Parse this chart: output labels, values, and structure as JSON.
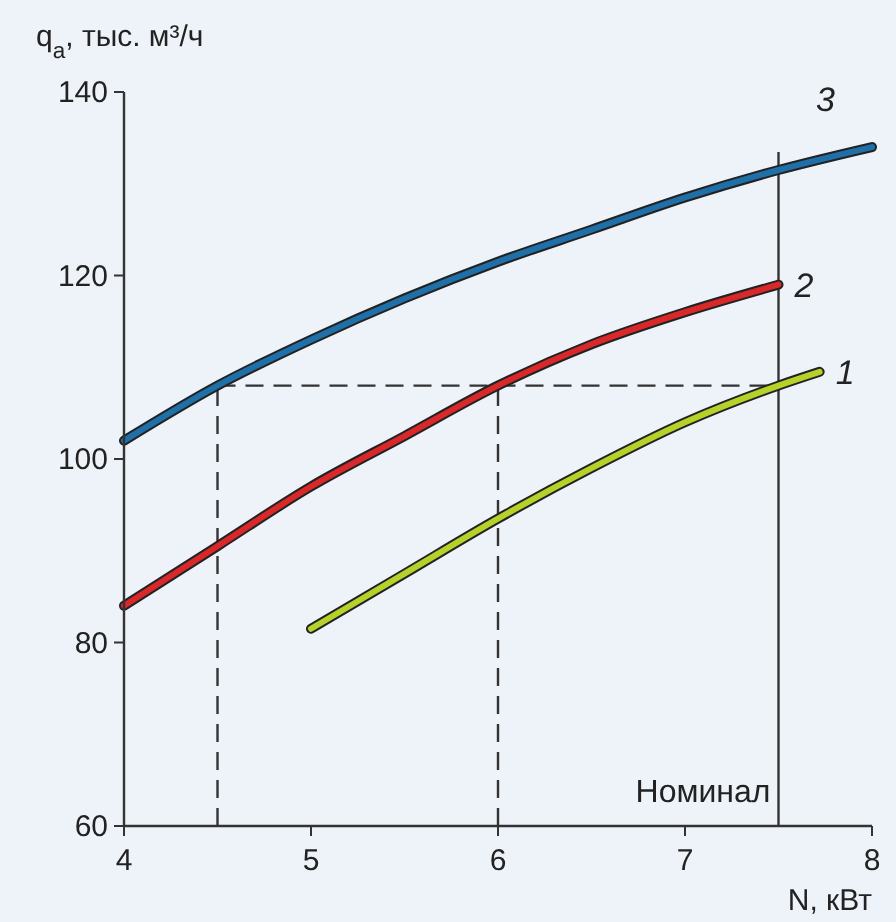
{
  "chart_data": {
    "type": "line",
    "xlabel": "N, кВт",
    "ylabel": "q$_{a}$, тыс. м³/ч",
    "x": [
      4,
      4.5,
      5,
      5.5,
      6,
      6.5,
      7,
      7.5,
      8
    ],
    "series": [
      {
        "name": "1",
        "color": "#b5d12a",
        "x": [
          5,
          5.5,
          6,
          6.5,
          7,
          7.5,
          7.72
        ],
        "values": [
          81.5,
          87.5,
          93.5,
          99,
          104,
          108,
          109.5
        ]
      },
      {
        "name": "2",
        "color": "#d8282a",
        "x": [
          4,
          4.5,
          5,
          5.5,
          6,
          6.5,
          7,
          7.5
        ],
        "values": [
          84,
          90.5,
          97,
          102.5,
          108,
          112.5,
          116,
          119
        ]
      },
      {
        "name": "3",
        "color": "#1f6fa8",
        "values": [
          102,
          108,
          113,
          117.5,
          121.5,
          125,
          128.5,
          131.5,
          134
        ]
      }
    ],
    "xlim": [
      4,
      8
    ],
    "ylim": [
      60,
      140
    ],
    "xticks": [
      4,
      5,
      6,
      7,
      8
    ],
    "yticks": [
      60,
      80,
      100,
      120,
      140
    ],
    "grid": false,
    "marker": "none",
    "line_style": "solid",
    "ref_lines": [
      {
        "axis": "x",
        "value": 4.5,
        "line_style": "dashed"
      },
      {
        "axis": "x",
        "value": 6,
        "line_style": "dashed"
      },
      {
        "axis": "y",
        "value": 108,
        "line_style": "dashed"
      },
      {
        "axis": "x",
        "value": 7.5,
        "label": "Номинал",
        "line_style": "solid"
      }
    ]
  }
}
